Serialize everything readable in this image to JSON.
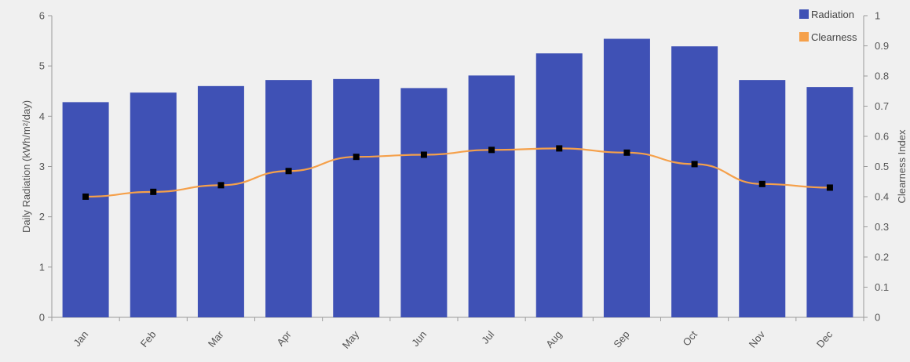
{
  "chart_data": {
    "type": "bar",
    "categories": [
      "Jan",
      "Feb",
      "Mar",
      "Apr",
      "May",
      "Jun",
      "Jul",
      "Aug",
      "Sep",
      "Oct",
      "Nov",
      "Dec"
    ],
    "series": [
      {
        "name": "Radiation",
        "type": "bar",
        "axis": "left",
        "color": "#3f51b5",
        "values": [
          4.28,
          4.47,
          4.6,
          4.72,
          4.74,
          4.56,
          4.81,
          5.25,
          5.54,
          5.39,
          4.72,
          4.58
        ]
      },
      {
        "name": "Clearness",
        "type": "line",
        "axis": "right",
        "color": "#f5a04a",
        "marker_color": "#000000",
        "values": [
          0.4,
          0.416,
          0.438,
          0.485,
          0.532,
          0.539,
          0.555,
          0.56,
          0.546,
          0.508,
          0.442,
          0.43
        ]
      }
    ],
    "ylabel": "Daily Radiation (kWh/m²/day)",
    "y2label": "Clearness Index",
    "ylim": [
      0,
      6
    ],
    "y2lim": [
      0,
      1
    ],
    "yticks": [
      "0",
      "1",
      "2",
      "3",
      "4",
      "5",
      "6"
    ],
    "y2ticks": [
      "0",
      "0.1",
      "0.2",
      "0.3",
      "0.4",
      "0.5",
      "0.6",
      "0.7",
      "0.8",
      "0.9",
      "1"
    ],
    "legend_placement": "top-right",
    "grid": false
  }
}
